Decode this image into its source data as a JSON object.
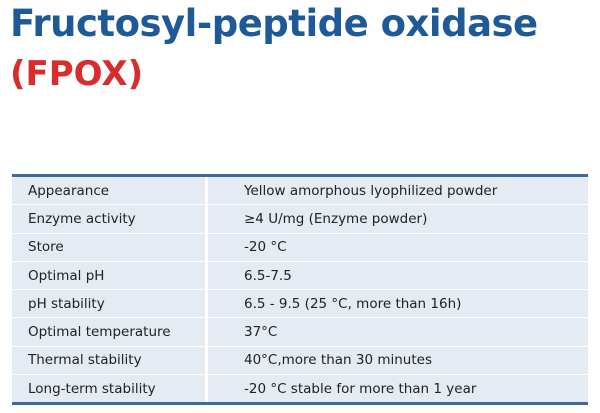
{
  "header": {
    "title": "Fructosyl-peptide oxidase",
    "subtitle": "(FPOX)"
  },
  "table": {
    "rows": [
      [
        "Appearance",
        "Yellow amorphous lyophilized powder"
      ],
      [
        "Enzyme activity",
        "≥4 U/mg (Enzyme powder)"
      ],
      [
        "Store",
        "-20 °C"
      ],
      [
        "Optimal pH",
        "6.5-7.5"
      ],
      [
        "pH stability",
        "6.5 - 9.5 (25 °C, more than 16h)"
      ],
      [
        "Optimal temperature",
        "37°C"
      ],
      [
        "Thermal stability",
        "40°C,more than 30 minutes"
      ],
      [
        "Long-term stability",
        "-20 °C stable for more than 1 year"
      ]
    ]
  }
}
